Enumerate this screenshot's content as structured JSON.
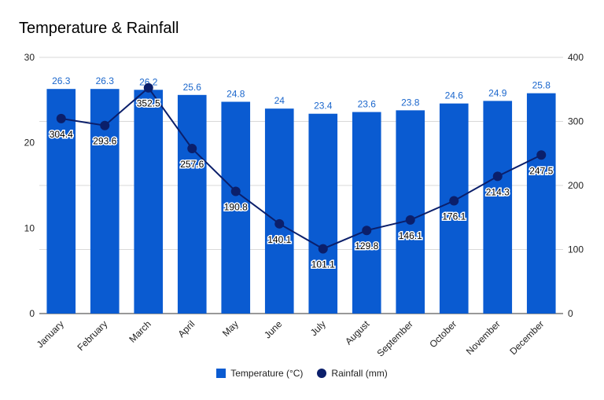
{
  "chart_data": {
    "type": "bar",
    "title": "Temperature & Rainfall",
    "categories": [
      "January",
      "February",
      "March",
      "April",
      "May",
      "June",
      "July",
      "August",
      "September",
      "October",
      "November",
      "December"
    ],
    "series": [
      {
        "name": "Temperature (°C)",
        "type": "bar",
        "axis": "left",
        "color": "#0a5bd1",
        "values": [
          26.3,
          26.3,
          26.2,
          25.6,
          24.8,
          24,
          23.4,
          23.6,
          23.8,
          24.6,
          24.9,
          25.8
        ]
      },
      {
        "name": "Rainfall (mm)",
        "type": "line",
        "axis": "right",
        "color": "#0b1f6b",
        "values": [
          304.4,
          293.6,
          352.5,
          257.6,
          190.8,
          140.1,
          101.1,
          129.8,
          146.1,
          176.1,
          214.3,
          247.5
        ]
      }
    ],
    "y_left": {
      "ylim": [
        0,
        30
      ],
      "ticks": [
        "0",
        "10",
        "20",
        "30"
      ]
    },
    "y_right": {
      "ylim": [
        0,
        400
      ],
      "ticks": [
        "0",
        "100",
        "200",
        "300",
        "400"
      ]
    },
    "grid": true,
    "legend_position": "bottom"
  }
}
